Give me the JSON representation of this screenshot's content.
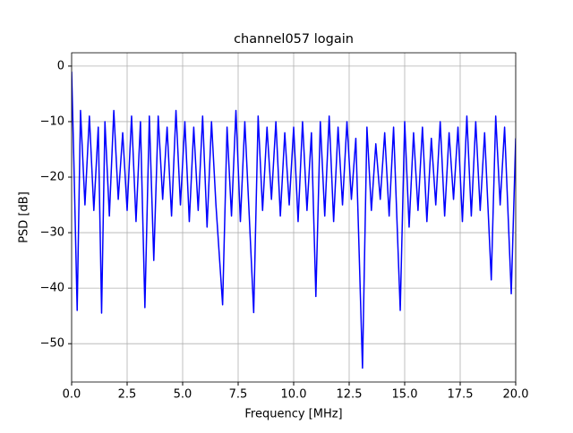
{
  "chart_data": {
    "type": "line",
    "title": "channel057 logain",
    "x_label": "Frequency [MHz]",
    "y_label": "PSD [dB]",
    "xlim": [
      0,
      20
    ],
    "ylim": [
      -56.9,
      2.4
    ],
    "xticks": [
      {
        "value": 0,
        "label": "0.0"
      },
      {
        "value": 2.5,
        "label": "2.5"
      },
      {
        "value": 5,
        "label": "5.0"
      },
      {
        "value": 7.5,
        "label": "7.5"
      },
      {
        "value": 10,
        "label": "10.0"
      },
      {
        "value": 12.5,
        "label": "12.5"
      },
      {
        "value": 15,
        "label": "15.0"
      },
      {
        "value": 17.5,
        "label": "17.5"
      },
      {
        "value": 20,
        "label": "20.0"
      }
    ],
    "yticks": [
      {
        "value": -50,
        "label": "−50"
      },
      {
        "value": -40,
        "label": "−40"
      },
      {
        "value": -30,
        "label": "−30"
      },
      {
        "value": -20,
        "label": "−20"
      },
      {
        "value": -10,
        "label": "−10"
      },
      0
    ],
    "grid": true,
    "x": [
      0,
      0.1,
      0.25,
      0.4,
      0.6,
      0.8,
      1.0,
      1.2,
      1.35,
      1.5,
      1.7,
      1.9,
      2.1,
      2.3,
      2.5,
      2.7,
      2.9,
      3.1,
      3.3,
      3.5,
      3.7,
      3.9,
      4.1,
      4.3,
      4.5,
      4.7,
      4.9,
      5.1,
      5.3,
      5.5,
      5.7,
      5.9,
      6.1,
      6.3,
      6.5,
      6.8,
      7.0,
      7.2,
      7.4,
      7.6,
      7.8,
      8.0,
      8.2,
      8.4,
      8.6,
      8.8,
      9.0,
      9.2,
      9.4,
      9.6,
      9.8,
      10.0,
      10.2,
      10.4,
      10.6,
      10.8,
      11.0,
      11.2,
      11.4,
      11.6,
      11.8,
      12.0,
      12.2,
      12.4,
      12.6,
      12.8,
      13.1,
      13.3,
      13.5,
      13.7,
      13.9,
      14.1,
      14.3,
      14.5,
      14.8,
      15.0,
      15.2,
      15.4,
      15.6,
      15.8,
      16.0,
      16.2,
      16.4,
      16.6,
      16.8,
      17.0,
      17.2,
      17.4,
      17.6,
      17.8,
      18.0,
      18.2,
      18.4,
      18.6,
      18.9,
      19.1,
      19.3,
      19.5,
      19.8,
      20.0
    ],
    "series": [
      {
        "color": "#0000ff",
        "values": [
          -1,
          -17,
          -44,
          -8,
          -25,
          -9,
          -26,
          -11,
          -44.5,
          -10,
          -27,
          -8,
          -24,
          -12,
          -26,
          -9,
          -28,
          -10,
          -43.5,
          -9,
          -35,
          -9,
          -24,
          -11,
          -27,
          -8,
          -25,
          -10,
          -28,
          -11,
          -26,
          -9,
          -29,
          -10,
          -25,
          -43,
          -11,
          -27,
          -8,
          -28,
          -10,
          -27,
          -44.4,
          -9,
          -26,
          -11,
          -24,
          -10,
          -27,
          -12,
          -25,
          -11,
          -28,
          -10,
          -26,
          -12,
          -41.5,
          -10,
          -27,
          -9,
          -28,
          -11,
          -25,
          -10,
          -24,
          -13,
          -54.4,
          -11,
          -26,
          -14,
          -24,
          -12,
          -27,
          -11,
          -44,
          -10,
          -29,
          -12,
          -26,
          -11,
          -28,
          -13,
          -25,
          -10,
          -27,
          -12,
          -24,
          -11,
          -28,
          -9,
          -27,
          -10,
          -26,
          -12,
          -38.5,
          -9,
          -25,
          -11,
          -41,
          -13
        ]
      }
    ]
  }
}
